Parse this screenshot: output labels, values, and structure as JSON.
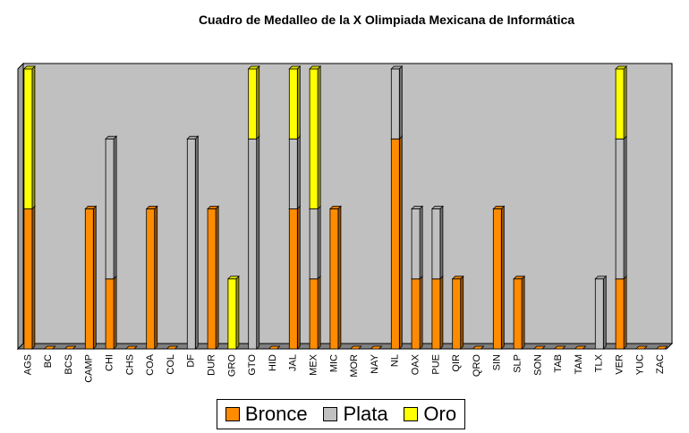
{
  "chart_data": {
    "type": "bar",
    "stacked": true,
    "three_d": true,
    "title": "Cuadro de Medalleo de la X Olimpiada Mexicana de Informática",
    "xlabel": "",
    "ylabel": "",
    "ylim": [
      0,
      4
    ],
    "y_ticks_shown": false,
    "grid": false,
    "legend_position": "bottom",
    "categories": [
      "AGS",
      "BC",
      "BCS",
      "CAMP",
      "CHI",
      "CHS",
      "COA",
      "COL",
      "DF",
      "DUR",
      "GRO",
      "GTO",
      "HID",
      "JAL",
      "MEX",
      "MIC",
      "MOR",
      "NAY",
      "NL",
      "OAX",
      "PUE",
      "QIR",
      "QRO",
      "SIN",
      "SLP",
      "SON",
      "TAB",
      "TAM",
      "TLX",
      "VER",
      "YUC",
      "ZAC"
    ],
    "series": [
      {
        "name": "Bronce",
        "color": "#ff8c00",
        "values": [
          2,
          0,
          0,
          2,
          1,
          0,
          2,
          0,
          0,
          2,
          0,
          0,
          0,
          2,
          1,
          2,
          0,
          0,
          3,
          1,
          1,
          1,
          0,
          2,
          1,
          0,
          0,
          0,
          0,
          1,
          0,
          0
        ]
      },
      {
        "name": "Plata",
        "color": "#c0c0c0",
        "values": [
          0,
          0,
          0,
          0,
          2,
          0,
          0,
          0,
          3,
          0,
          0,
          3,
          0,
          1,
          1,
          0,
          0,
          0,
          1,
          1,
          1,
          0,
          0,
          0,
          0,
          0,
          0,
          0,
          1,
          2,
          0,
          0
        ]
      },
      {
        "name": "Oro",
        "color": "#ffff00",
        "values": [
          2,
          0,
          0,
          0,
          0,
          0,
          0,
          0,
          0,
          0,
          1,
          1,
          0,
          1,
          2,
          0,
          0,
          0,
          0,
          0,
          0,
          0,
          0,
          0,
          0,
          0,
          0,
          0,
          0,
          1,
          0,
          0
        ]
      }
    ]
  }
}
